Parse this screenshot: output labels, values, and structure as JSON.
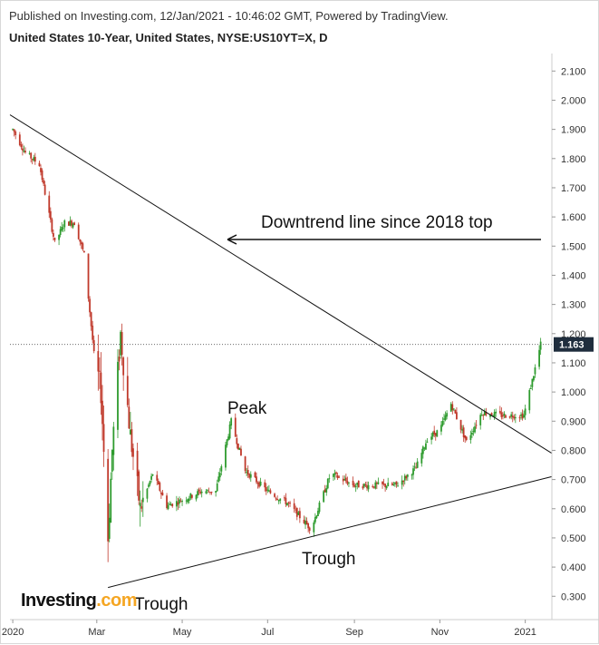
{
  "header": {
    "published": "Published on Investing.com, 12/Jan/2021 - 10:46:02 GMT, Powered by TradingView.",
    "title": "United States 10-Year, United States, NYSE:US10YT=X, D"
  },
  "logo": {
    "text": "Investing",
    "suffix": ".com"
  },
  "colors": {
    "up": "#2e9b2e",
    "down": "#c0392b",
    "line": "#111111",
    "price_tag": "#1f2d3d",
    "grid": "#e6e6e6"
  },
  "chart_data": {
    "type": "candlestick",
    "title": "United States 10-Year, United States, NYSE:US10YT=X, D",
    "x_ticks": [
      "2020",
      "Mar",
      "May",
      "Jul",
      "Sep",
      "Nov",
      "2021"
    ],
    "y_ticks": [
      "2.100",
      "2.000",
      "1.900",
      "1.800",
      "1.700",
      "1.600",
      "1.500",
      "1.400",
      "1.300",
      "1.200",
      "1.100",
      "1.000",
      "0.900",
      "0.800",
      "0.700",
      "0.600",
      "0.500",
      "0.400",
      "0.300"
    ],
    "ylim": [
      0.22,
      2.16
    ],
    "last_price": 1.163,
    "last_price_label": "1.163",
    "series": [
      {
        "date": "2020-01-01",
        "close": 1.9
      },
      {
        "date": "2020-01-10",
        "close": 1.82
      },
      {
        "date": "2020-01-20",
        "close": 1.78
      },
      {
        "date": "2020-01-31",
        "close": 1.51
      },
      {
        "date": "2020-02-07",
        "close": 1.58
      },
      {
        "date": "2020-02-14",
        "close": 1.58
      },
      {
        "date": "2020-02-21",
        "close": 1.47
      },
      {
        "date": "2020-02-28",
        "close": 1.13
      },
      {
        "date": "2020-03-04",
        "close": 1.0
      },
      {
        "date": "2020-03-09",
        "close": 0.5
      },
      {
        "date": "2020-03-12",
        "close": 0.8
      },
      {
        "date": "2020-03-18",
        "close": 1.2
      },
      {
        "date": "2020-03-25",
        "close": 0.85
      },
      {
        "date": "2020-04-01",
        "close": 0.6
      },
      {
        "date": "2020-04-10",
        "close": 0.72
      },
      {
        "date": "2020-04-20",
        "close": 0.61
      },
      {
        "date": "2020-05-01",
        "close": 0.63
      },
      {
        "date": "2020-05-15",
        "close": 0.66
      },
      {
        "date": "2020-05-25",
        "close": 0.66
      },
      {
        "date": "2020-06-05",
        "close": 0.9
      },
      {
        "date": "2020-06-15",
        "close": 0.73
      },
      {
        "date": "2020-07-01",
        "close": 0.66
      },
      {
        "date": "2020-07-15",
        "close": 0.62
      },
      {
        "date": "2020-08-01",
        "close": 0.53
      },
      {
        "date": "2020-08-15",
        "close": 0.72
      },
      {
        "date": "2020-09-01",
        "close": 0.68
      },
      {
        "date": "2020-09-15",
        "close": 0.68
      },
      {
        "date": "2020-10-01",
        "close": 0.68
      },
      {
        "date": "2020-10-15",
        "close": 0.74
      },
      {
        "date": "2020-10-23",
        "close": 0.84
      },
      {
        "date": "2020-11-01",
        "close": 0.87
      },
      {
        "date": "2020-11-09",
        "close": 0.96
      },
      {
        "date": "2020-11-20",
        "close": 0.83
      },
      {
        "date": "2020-12-01",
        "close": 0.93
      },
      {
        "date": "2020-12-15",
        "close": 0.92
      },
      {
        "date": "2020-12-31",
        "close": 0.92
      },
      {
        "date": "2021-01-06",
        "close": 1.04
      },
      {
        "date": "2021-01-12",
        "close": 1.163
      }
    ],
    "annotations": [
      {
        "text": "Downtrend line since 2018 top",
        "kind": "arrow_label"
      },
      {
        "text": "Peak",
        "kind": "label"
      },
      {
        "text": "Trough",
        "kind": "label",
        "target": "2020-08"
      },
      {
        "text": "Trough",
        "kind": "label",
        "target": "2020-03"
      }
    ],
    "trendlines": [
      {
        "name": "downtrend",
        "from": {
          "date": "2019-12-30",
          "value": 1.95
        },
        "to": {
          "date": "2021-01-20",
          "value": 0.79
        }
      },
      {
        "name": "uptrend",
        "from": {
          "date": "2020-03-09",
          "value": 0.33
        },
        "to": {
          "date": "2021-01-20",
          "value": 0.71
        }
      }
    ]
  }
}
